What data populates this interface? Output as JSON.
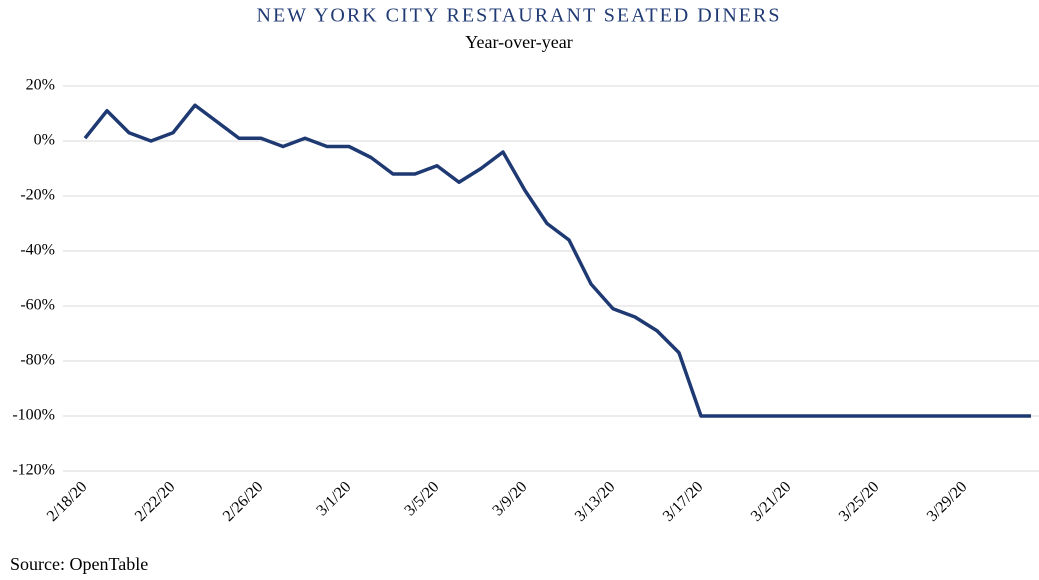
{
  "chart_data": {
    "type": "line",
    "title": "NEW YORK CITY RESTAURANT SEATED DINERS",
    "subtitle": "Year-over-year",
    "source": "Source: OpenTable",
    "categories": [
      "2/18/20",
      null,
      null,
      null,
      "2/22/20",
      null,
      null,
      null,
      "2/26/20",
      null,
      null,
      null,
      "3/1/20",
      null,
      null,
      null,
      "3/5/20",
      null,
      null,
      null,
      "3/9/20",
      null,
      null,
      null,
      "3/13/20",
      null,
      null,
      null,
      "3/17/20",
      null,
      null,
      null,
      "3/21/20",
      null,
      null,
      null,
      "3/25/20",
      null,
      null,
      null,
      "3/29/20",
      null,
      null,
      null
    ],
    "series": [
      {
        "name": "Seated diners",
        "color": "#1f3a73",
        "values": [
          1,
          11,
          3,
          0,
          3,
          13,
          7,
          1,
          1,
          -2,
          1,
          -2,
          -2,
          -6,
          -12,
          -12,
          -9,
          -15,
          -10,
          -4,
          -18,
          -30,
          -36,
          -52,
          -61,
          -64,
          -69,
          -77,
          -100,
          -100,
          -100,
          -100,
          -100,
          -100,
          -100,
          -100,
          -100,
          -100,
          -100,
          -100,
          -100,
          -100,
          -100,
          -100
        ]
      }
    ],
    "ylim": [
      -120,
      20
    ],
    "yticks": [
      {
        "value": -120,
        "label": "-120%"
      },
      {
        "value": -100,
        "label": "-100%"
      },
      {
        "value": -80,
        "label": "-80%"
      },
      {
        "value": -60,
        "label": "-60%"
      },
      {
        "value": -40,
        "label": "-40%"
      },
      {
        "value": -20,
        "label": "-20%"
      },
      {
        "value": 0,
        "label": "0%"
      },
      {
        "value": 20,
        "label": "20%"
      }
    ],
    "grid": true
  }
}
